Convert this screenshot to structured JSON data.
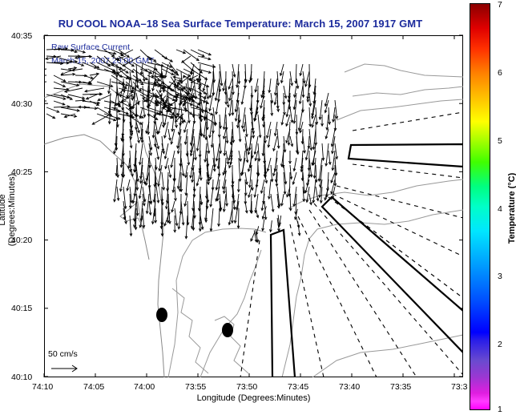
{
  "title": "RU COOL  NOAA–18  Sea Surface Temperature:  March 15, 2007 1917 GMT",
  "subtitle_line1": "Raw Surface Current",
  "subtitle_line2": "March 15, 2007 20:00 GMT",
  "x_axis": {
    "label": "Longitude (Degrees:Minutes)",
    "ticks": [
      "74:10",
      "74:05",
      "74:00",
      "73:55",
      "73:50",
      "73:45",
      "73:40",
      "73:35",
      "73:3"
    ]
  },
  "y_axis": {
    "label": "Latitude (Degrees:Minutes)",
    "ticks": [
      "40:35",
      "40:30",
      "40:25",
      "40:20",
      "40:15",
      "40:10"
    ]
  },
  "colorbar": {
    "label": "Temperature (°C)",
    "ticks": [
      "7",
      "6",
      "5",
      "4",
      "3",
      "2",
      "1"
    ],
    "colors": [
      "#ff00ff",
      "#0000ff",
      "#00e6ff",
      "#00ff80",
      "#ffff00",
      "#ff8000",
      "#8b0000"
    ]
  },
  "scale_arrow": {
    "label": "50 cm/s"
  },
  "colors": {
    "title": "#1b2a9c",
    "contour": "#888888",
    "arrows": "#000000"
  }
}
